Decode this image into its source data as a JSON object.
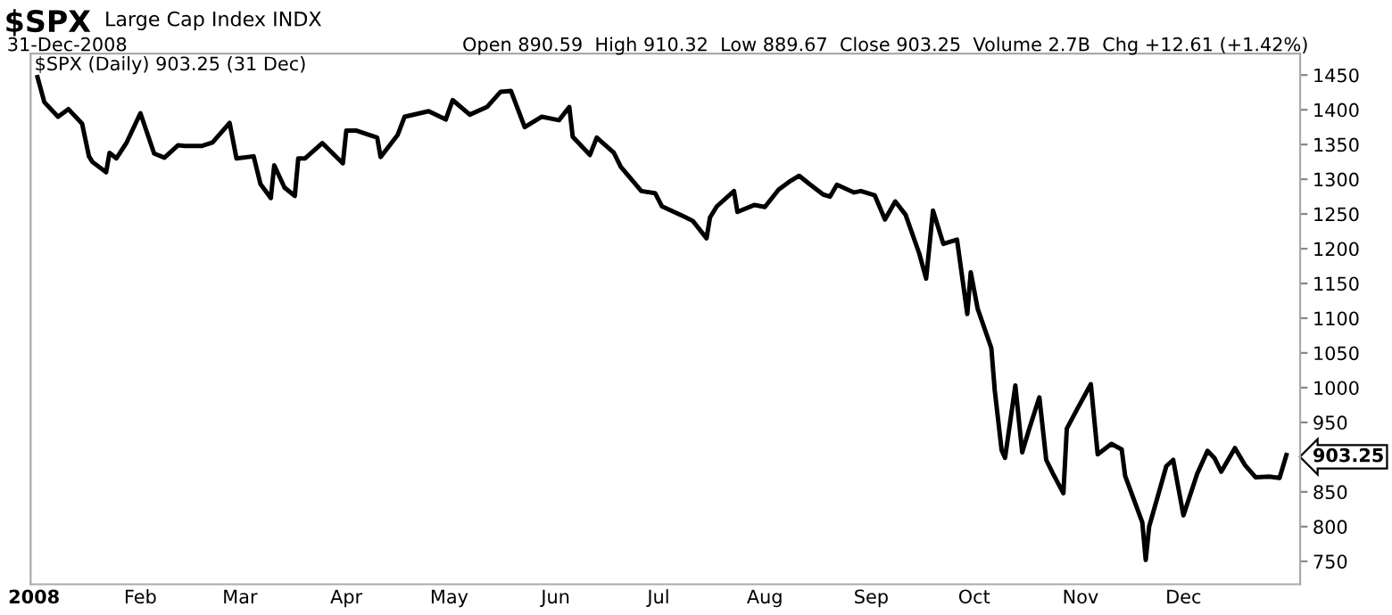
{
  "chart_data": {
    "type": "line",
    "title": "$SPX",
    "subtitle": "Large Cap Index INDX",
    "annotations": [
      "31-Dec-2008",
      "Open 890.59  High 910.32  Low 889.67  Close 903.25  Volume 2.7B  Chg +12.61 (+1.42%)",
      "$SPX (Daily) 903.25 (31 Dec)"
    ],
    "x": [
      "2008-01-02",
      "2008-01-04",
      "2008-01-08",
      "2008-01-11",
      "2008-01-15",
      "2008-01-17",
      "2008-01-18",
      "2008-01-22",
      "2008-01-23",
      "2008-01-25",
      "2008-01-28",
      "2008-02-01",
      "2008-02-05",
      "2008-02-08",
      "2008-02-12",
      "2008-02-14",
      "2008-02-19",
      "2008-02-22",
      "2008-02-27",
      "2008-02-29",
      "2008-03-05",
      "2008-03-07",
      "2008-03-10",
      "2008-03-11",
      "2008-03-14",
      "2008-03-17",
      "2008-03-18",
      "2008-03-20",
      "2008-03-25",
      "2008-03-31",
      "2008-04-01",
      "2008-04-04",
      "2008-04-10",
      "2008-04-11",
      "2008-04-16",
      "2008-04-18",
      "2008-04-25",
      "2008-04-30",
      "2008-05-02",
      "2008-05-07",
      "2008-05-12",
      "2008-05-16",
      "2008-05-19",
      "2008-05-23",
      "2008-05-28",
      "2008-06-02",
      "2008-06-05",
      "2008-06-06",
      "2008-06-11",
      "2008-06-13",
      "2008-06-18",
      "2008-06-20",
      "2008-06-26",
      "2008-06-30",
      "2008-07-02",
      "2008-07-09",
      "2008-07-11",
      "2008-07-15",
      "2008-07-16",
      "2008-07-18",
      "2008-07-23",
      "2008-07-24",
      "2008-07-29",
      "2008-08-01",
      "2008-08-05",
      "2008-08-08",
      "2008-08-11",
      "2008-08-14",
      "2008-08-18",
      "2008-08-20",
      "2008-08-22",
      "2008-08-27",
      "2008-08-29",
      "2008-09-02",
      "2008-09-05",
      "2008-09-08",
      "2008-09-11",
      "2008-09-15",
      "2008-09-17",
      "2008-09-19",
      "2008-09-22",
      "2008-09-26",
      "2008-09-29",
      "2008-09-30",
      "2008-10-02",
      "2008-10-06",
      "2008-10-07",
      "2008-10-09",
      "2008-10-10",
      "2008-10-13",
      "2008-10-15",
      "2008-10-17",
      "2008-10-20",
      "2008-10-22",
      "2008-10-24",
      "2008-10-27",
      "2008-10-28",
      "2008-10-31",
      "2008-11-04",
      "2008-11-06",
      "2008-11-10",
      "2008-11-13",
      "2008-11-14",
      "2008-11-19",
      "2008-11-20",
      "2008-11-21",
      "2008-11-24",
      "2008-11-26",
      "2008-11-28",
      "2008-12-01",
      "2008-12-05",
      "2008-12-08",
      "2008-12-10",
      "2008-12-12",
      "2008-12-16",
      "2008-12-19",
      "2008-12-22",
      "2008-12-26",
      "2008-12-29",
      "2008-12-31"
    ],
    "series": [
      {
        "color": "#000000",
        "values": [
          1447,
          1411,
          1390,
          1401,
          1380,
          1333,
          1325,
          1310,
          1338,
          1330,
          1353,
          1395,
          1337,
          1331,
          1349,
          1348,
          1348,
          1353,
          1381,
          1330,
          1333,
          1293,
          1273,
          1320,
          1288,
          1276,
          1330,
          1330,
          1352,
          1323,
          1370,
          1370,
          1360,
          1332,
          1364,
          1390,
          1398,
          1386,
          1414,
          1393,
          1404,
          1426,
          1427,
          1375,
          1390,
          1385,
          1404,
          1361,
          1335,
          1360,
          1338,
          1318,
          1283,
          1280,
          1261,
          1245,
          1240,
          1215,
          1245,
          1261,
          1283,
          1253,
          1263,
          1260,
          1285,
          1296,
          1305,
          1293,
          1278,
          1275,
          1292,
          1281,
          1283,
          1277,
          1242,
          1268,
          1249,
          1193,
          1157,
          1255,
          1207,
          1213,
          1106,
          1166,
          1114,
          1057,
          996,
          910,
          899,
          1003,
          907,
          940,
          986,
          896,
          876,
          848,
          941,
          969,
          1005,
          904,
          919,
          911,
          873,
          806,
          752,
          800,
          852,
          887,
          896,
          816,
          876,
          909,
          899,
          879,
          913,
          888,
          871,
          872,
          870,
          903
        ]
      }
    ],
    "xlim": [
      "2007-12-31",
      "2009-01-04"
    ],
    "xticks": [
      {
        "value": "2008-01-01",
        "label": "2008"
      },
      {
        "value": "2008-02-01",
        "label": "Feb"
      },
      {
        "value": "2008-03-01",
        "label": "Mar"
      },
      {
        "value": "2008-04-01",
        "label": "Apr"
      },
      {
        "value": "2008-05-01",
        "label": "May"
      },
      {
        "value": "2008-06-01",
        "label": "Jun"
      },
      {
        "value": "2008-07-01",
        "label": "Jul"
      },
      {
        "value": "2008-08-01",
        "label": "Aug"
      },
      {
        "value": "2008-09-01",
        "label": "Sep"
      },
      {
        "value": "2008-10-01",
        "label": "Oct"
      },
      {
        "value": "2008-11-01",
        "label": "Nov"
      },
      {
        "value": "2008-12-01",
        "label": "Dec"
      }
    ],
    "ylim": [
      717,
      1481
    ],
    "yticks": [
      750,
      800,
      850,
      {
        "value": 903.25,
        "label": "903.25"
      },
      950,
      1000,
      1050,
      1100,
      1150,
      1200,
      1250,
      1300,
      1350,
      1400,
      1450
    ],
    "grid": false,
    "legend": false,
    "marker": "none",
    "line_style": "solid"
  }
}
